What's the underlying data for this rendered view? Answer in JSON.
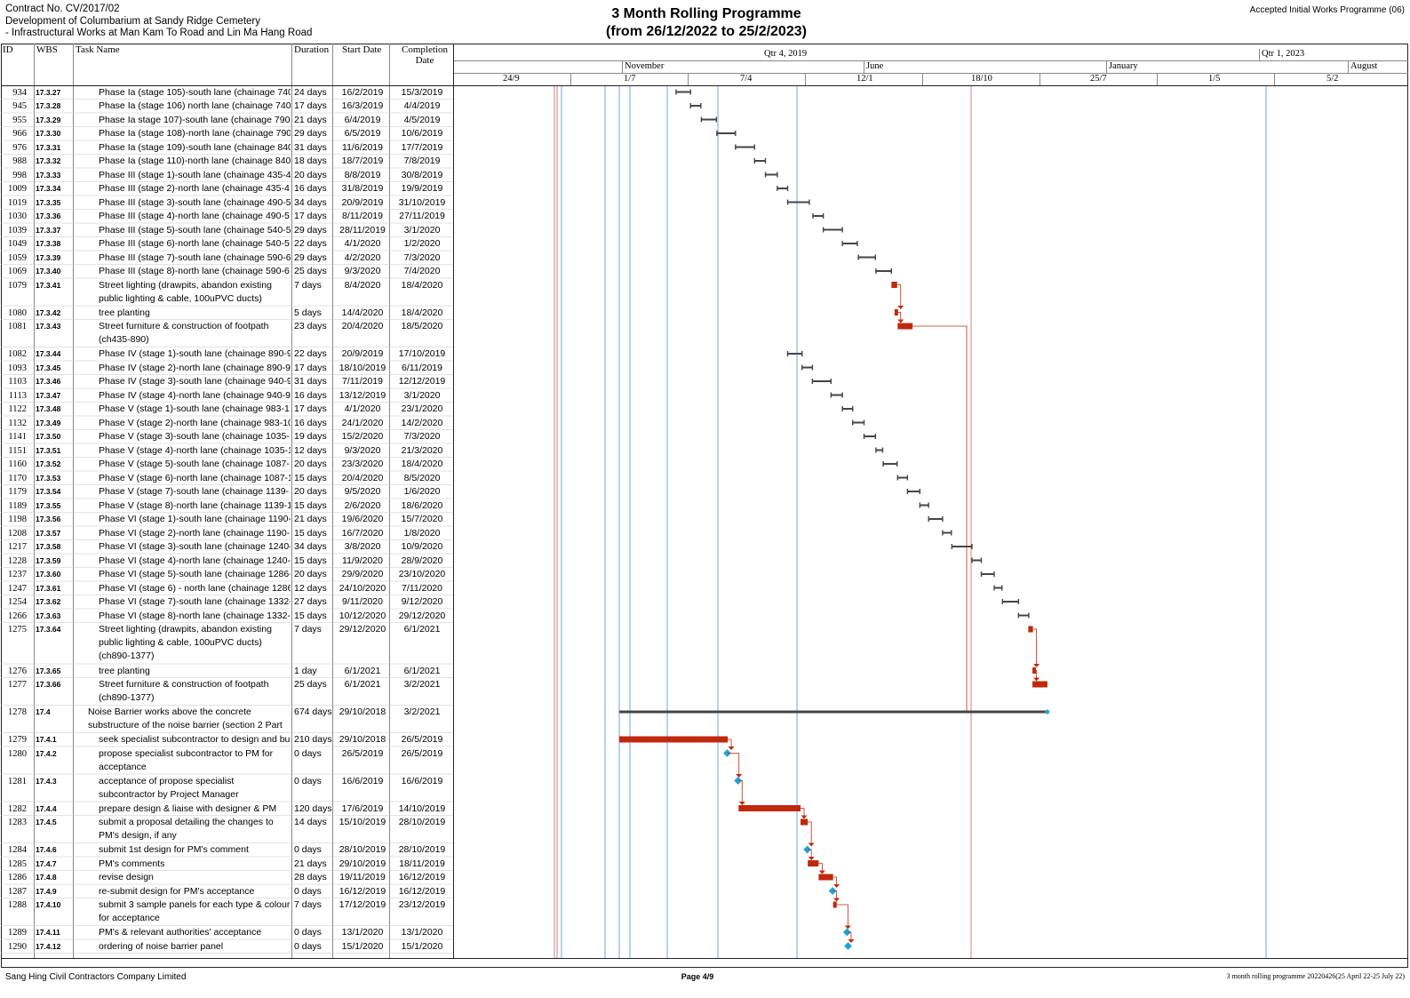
{
  "header": {
    "contract": "Contract No. CV/2017/02",
    "project_line1": "Development of Columbarium at Sandy Ridge Cemetery",
    "project_line2": "- Infrastructural Works at Man Kam To Road and Lin Ma Hang Road",
    "title_line1": "3 Month Rolling Programme",
    "title_line2": "(from 26/12/2022 to 25/2/2023)",
    "programme_ref": "Accepted Initial Works Programme (06)"
  },
  "columns": {
    "id": "ID",
    "wbs": "WBS",
    "task": "Task Name",
    "duration": "Duration",
    "start": "Start Date",
    "completion": "Completion Date"
  },
  "timescale": {
    "quarters": [
      "Qtr 4, 2019",
      "Qtr 1, 2023"
    ],
    "months": [
      "November",
      "June",
      "January",
      "August"
    ],
    "days": [
      "24/9",
      "1/7",
      "7/4",
      "12/1",
      "18/10",
      "25/7",
      "1/5",
      "5/2"
    ]
  },
  "tasks": [
    {
      "id": "934",
      "wbs": "17.3.27",
      "name": "Phase Ia (stage 105)-south lane (chainage 740",
      "dur": "24 days",
      "start": "16/2/2019",
      "end": "15/3/2019"
    },
    {
      "id": "945",
      "wbs": "17.3.28",
      "name": "Phase Ia (stage 106) north lane (chainage 740-",
      "dur": "17 days",
      "start": "16/3/2019",
      "end": "4/4/2019"
    },
    {
      "id": "955",
      "wbs": "17.3.29",
      "name": "Phase Ia stage 107)-south lane (chainage 790-",
      "dur": "21 days",
      "start": "6/4/2019",
      "end": "4/5/2019"
    },
    {
      "id": "966",
      "wbs": "17.3.30",
      "name": "Phase Ia (stage 108)-north lane (chainage 790",
      "dur": "29 days",
      "start": "6/5/2019",
      "end": "10/6/2019"
    },
    {
      "id": "976",
      "wbs": "17.3.31",
      "name": "Phase Ia (stage 109)-south lane (chainage 840",
      "dur": "31 days",
      "start": "11/6/2019",
      "end": "17/7/2019"
    },
    {
      "id": "988",
      "wbs": "17.3.32",
      "name": "Phase Ia (stage 110)-north lane (chainage 840",
      "dur": "18 days",
      "start": "18/7/2019",
      "end": "7/8/2019"
    },
    {
      "id": "998",
      "wbs": "17.3.33",
      "name": "Phase III (stage 1)-south lane (chainage 435-4",
      "dur": "20 days",
      "start": "8/8/2019",
      "end": "30/8/2019"
    },
    {
      "id": "1009",
      "wbs": "17.3.34",
      "name": "Phase III (stage 2)-north lane (chainage 435-4",
      "dur": "16 days",
      "start": "31/8/2019",
      "end": "19/9/2019"
    },
    {
      "id": "1019",
      "wbs": "17.3.35",
      "name": "Phase III (stage 3)-south lane (chainage 490-5",
      "dur": "34 days",
      "start": "20/9/2019",
      "end": "31/10/2019"
    },
    {
      "id": "1030",
      "wbs": "17.3.36",
      "name": "Phase III (stage 4)-north lane (chainage 490-5",
      "dur": "17 days",
      "start": "8/11/2019",
      "end": "27/11/2019"
    },
    {
      "id": "1039",
      "wbs": "17.3.37",
      "name": "Phase III (stage 5)-south lane (chainage 540-5",
      "dur": "29 days",
      "start": "28/11/2019",
      "end": "3/1/2020"
    },
    {
      "id": "1049",
      "wbs": "17.3.38",
      "name": "Phase III (stage 6)-north lane (chainage 540-5",
      "dur": "22 days",
      "start": "4/1/2020",
      "end": "1/2/2020"
    },
    {
      "id": "1059",
      "wbs": "17.3.39",
      "name": "Phase III (stage 7)-south lane (chainage 590-6",
      "dur": "29 days",
      "start": "4/2/2020",
      "end": "7/3/2020"
    },
    {
      "id": "1069",
      "wbs": "17.3.40",
      "name": "Phase III (stage 8)-north lane (chainage 590-6",
      "dur": "25 days",
      "start": "9/3/2020",
      "end": "7/4/2020"
    },
    {
      "id": "1079",
      "wbs": "17.3.41",
      "name": "Street lighting (drawpits, abandon existing public lighting & cable, 100uPVC ducts)",
      "dur": "7 days",
      "start": "8/4/2020",
      "end": "18/4/2020"
    },
    {
      "id": "1080",
      "wbs": "17.3.42",
      "name": "tree planting",
      "dur": "5 days",
      "start": "14/4/2020",
      "end": "18/4/2020"
    },
    {
      "id": "1081",
      "wbs": "17.3.43",
      "name": "Street furniture & construction of footpath (ch435-890)",
      "dur": "23 days",
      "start": "20/4/2020",
      "end": "18/5/2020"
    },
    {
      "id": "1082",
      "wbs": "17.3.44",
      "name": "Phase IV (stage 1)-south lane (chainage 890-9",
      "dur": "22 days",
      "start": "20/9/2019",
      "end": "17/10/2019"
    },
    {
      "id": "1093",
      "wbs": "17.3.45",
      "name": "Phase IV (stage 2)-north lane (chainage 890-9",
      "dur": "17 days",
      "start": "18/10/2019",
      "end": "6/11/2019"
    },
    {
      "id": "1103",
      "wbs": "17.3.46",
      "name": "Phase IV (stage 3)-south lane (chainage 940-9",
      "dur": "31 days",
      "start": "7/11/2019",
      "end": "12/12/2019"
    },
    {
      "id": "1113",
      "wbs": "17.3.47",
      "name": "Phase IV (stage 4)-north lane (chainage 940-9",
      "dur": "16 days",
      "start": "13/12/2019",
      "end": "3/1/2020"
    },
    {
      "id": "1122",
      "wbs": "17.3.48",
      "name": "Phase V (stage 1)-south lane (chainage 983-1",
      "dur": "17 days",
      "start": "4/1/2020",
      "end": "23/1/2020"
    },
    {
      "id": "1132",
      "wbs": "17.3.49",
      "name": "Phase V (stage 2)-north lane (chainage 983-10",
      "dur": "16 days",
      "start": "24/1/2020",
      "end": "14/2/2020"
    },
    {
      "id": "1141",
      "wbs": "17.3.50",
      "name": "Phase V (stage 3)-south lane (chainage 1035-",
      "dur": "19 days",
      "start": "15/2/2020",
      "end": "7/3/2020"
    },
    {
      "id": "1151",
      "wbs": "17.3.51",
      "name": "Phase V (stage 4)-north lane (chainage 1035-1",
      "dur": "12 days",
      "start": "9/3/2020",
      "end": "21/3/2020"
    },
    {
      "id": "1160",
      "wbs": "17.3.52",
      "name": "Phase V (stage 5)-south lane (chainage 1087-",
      "dur": "20 days",
      "start": "23/3/2020",
      "end": "18/4/2020"
    },
    {
      "id": "1170",
      "wbs": "17.3.53",
      "name": "Phase V (stage 6)-north lane (chainage 1087-1",
      "dur": "15 days",
      "start": "20/4/2020",
      "end": "8/5/2020"
    },
    {
      "id": "1179",
      "wbs": "17.3.54",
      "name": "Phase V (stage 7)-south lane (chainage 1139-",
      "dur": "20 days",
      "start": "9/5/2020",
      "end": "1/6/2020"
    },
    {
      "id": "1189",
      "wbs": "17.3.55",
      "name": "Phase V (stage 8)-north lane (chainage 1139-1",
      "dur": "15 days",
      "start": "2/6/2020",
      "end": "18/6/2020"
    },
    {
      "id": "1198",
      "wbs": "17.3.56",
      "name": "Phase VI (stage 1)-south lane (chainage 1190-",
      "dur": "21 days",
      "start": "19/6/2020",
      "end": "15/7/2020"
    },
    {
      "id": "1208",
      "wbs": "17.3.57",
      "name": "Phase VI (stage 2)-north lane (chainage 1190-",
      "dur": "15 days",
      "start": "16/7/2020",
      "end": "1/8/2020"
    },
    {
      "id": "1217",
      "wbs": "17.3.58",
      "name": "Phase VI (stage 3)-south lane (chainage 1240-",
      "dur": "34 days",
      "start": "3/8/2020",
      "end": "10/9/2020"
    },
    {
      "id": "1228",
      "wbs": "17.3.59",
      "name": "Phase VI (stage 4)-north lane (chainage 1240-",
      "dur": "15 days",
      "start": "11/9/2020",
      "end": "28/9/2020"
    },
    {
      "id": "1237",
      "wbs": "17.3.60",
      "name": "Phase VI (stage 5)-south lane (chainage 1286-",
      "dur": "20 days",
      "start": "29/9/2020",
      "end": "23/10/2020"
    },
    {
      "id": "1247",
      "wbs": "17.3.61",
      "name": "Phase VI (stage 6) - north lane (chainage 1286",
      "dur": "12 days",
      "start": "24/10/2020",
      "end": "7/11/2020"
    },
    {
      "id": "1254",
      "wbs": "17.3.62",
      "name": "Phase VI (stage 7)-south lane (chainage 1332-",
      "dur": "27 days",
      "start": "9/11/2020",
      "end": "9/12/2020"
    },
    {
      "id": "1266",
      "wbs": "17.3.63",
      "name": "Phase VI (stage 8)-north lane (chainage 1332-",
      "dur": "15 days",
      "start": "10/12/2020",
      "end": "29/12/2020"
    },
    {
      "id": "1275",
      "wbs": "17.3.64",
      "name": "Street lighting (drawpits, abandon existing public lighting & cable, 100uPVC ducts) (ch890-1377)",
      "dur": "7 days",
      "start": "29/12/2020",
      "end": "6/1/2021"
    },
    {
      "id": "1276",
      "wbs": "17.3.65",
      "name": "tree planting",
      "dur": "1 day",
      "start": "6/1/2021",
      "end": "6/1/2021"
    },
    {
      "id": "1277",
      "wbs": "17.3.66",
      "name": "Street furniture & construction of footpath (ch890-1377)",
      "dur": "25 days",
      "start": "6/1/2021",
      "end": "3/2/2021"
    },
    {
      "id": "1278",
      "wbs": "17.4",
      "name": "Noise Barrier works above the concrete substructure of the noise barrier (section 2 Part",
      "dur": "674 days",
      "start": "29/10/2018",
      "end": "3/2/2021"
    },
    {
      "id": "1279",
      "wbs": "17.4.1",
      "name": "seek specialist subcontractor to design and bui",
      "dur": "210 days",
      "start": "29/10/2018",
      "end": "26/5/2019"
    },
    {
      "id": "1280",
      "wbs": "17.4.2",
      "name": "propose specialist subcontractor to PM for acceptance",
      "dur": "0 days",
      "start": "26/5/2019",
      "end": "26/5/2019"
    },
    {
      "id": "1281",
      "wbs": "17.4.3",
      "name": "acceptance of propose specialist subcontractor by Project Manager",
      "dur": "0 days",
      "start": "16/6/2019",
      "end": "16/6/2019"
    },
    {
      "id": "1282",
      "wbs": "17.4.4",
      "name": "prepare design & liaise with designer & PM",
      "dur": "120 days",
      "start": "17/6/2019",
      "end": "14/10/2019"
    },
    {
      "id": "1283",
      "wbs": "17.4.5",
      "name": "submit a proposal detailing the changes to PM's design, if any",
      "dur": "14 days",
      "start": "15/10/2019",
      "end": "28/10/2019"
    },
    {
      "id": "1284",
      "wbs": "17.4.6",
      "name": "submit 1st design for PM's comment",
      "dur": "0 days",
      "start": "28/10/2019",
      "end": "28/10/2019"
    },
    {
      "id": "1285",
      "wbs": "17.4.7",
      "name": "PM's comments",
      "dur": "21 days",
      "start": "29/10/2019",
      "end": "18/11/2019"
    },
    {
      "id": "1286",
      "wbs": "17.4.8",
      "name": "revise design",
      "dur": "28 days",
      "start": "19/11/2019",
      "end": "16/12/2019"
    },
    {
      "id": "1287",
      "wbs": "17.4.9",
      "name": "re-submit design for PM's acceptance",
      "dur": "0 days",
      "start": "16/12/2019",
      "end": "16/12/2019"
    },
    {
      "id": "1288",
      "wbs": "17.4.10",
      "name": "submit 3 sample panels for each type & colour for acceptance",
      "dur": "7 days",
      "start": "17/12/2019",
      "end": "23/12/2019"
    },
    {
      "id": "1289",
      "wbs": "17.4.11",
      "name": "PM's & relevant authorities' acceptance",
      "dur": "0 days",
      "start": "13/1/2020",
      "end": "13/1/2020"
    },
    {
      "id": "1290",
      "wbs": "17.4.12",
      "name": "ordering of noise barrier panel",
      "dur": "0 days",
      "start": "15/1/2020",
      "end": "15/1/2020"
    }
  ],
  "footer": {
    "company": "Sang Hing Civil Contractors Company Limited",
    "page": "Page 4/9",
    "file": "3 month rolling programme 20220426(25 April 22-25 July 22)"
  },
  "colors": {
    "critical": "#c1280c",
    "normal_bar": "#444444",
    "milestone": "#1fa3d6",
    "link": "#c1280c",
    "guide_blue": "#2a7bd0",
    "guide_red": "#d04040"
  }
}
